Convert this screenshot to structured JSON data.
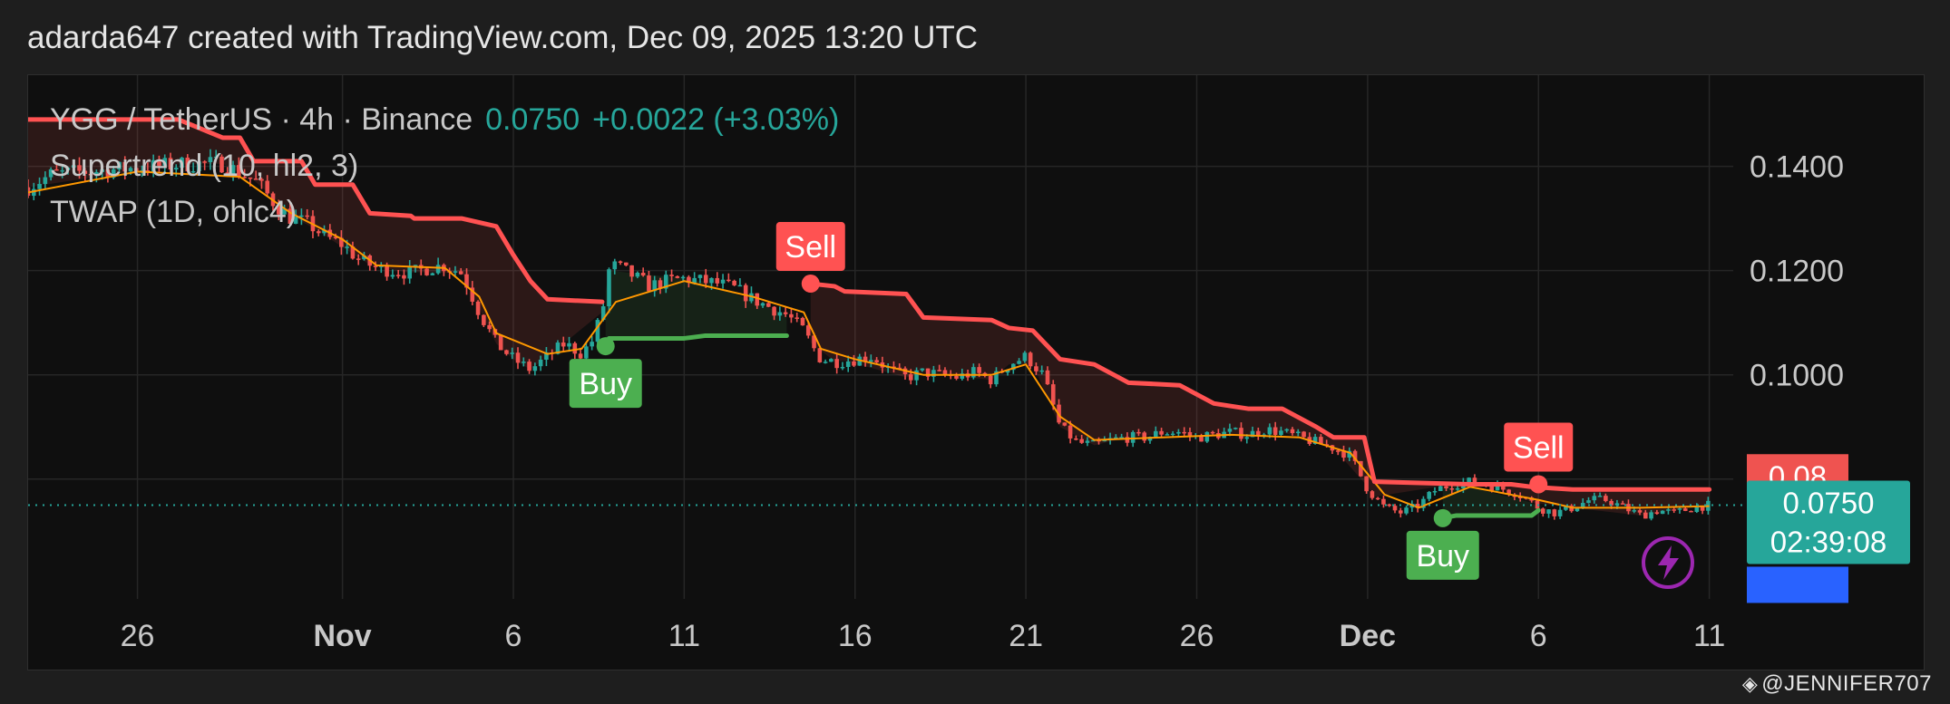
{
  "header": {
    "attribution": "adarda647 created with TradingView.com, Dec 09, 2025 13:20 UTC"
  },
  "legend": {
    "symbol": "YGG / TetherUS · 4h · Binance",
    "last_price": "0.0750",
    "change": "+0.0022 (+3.03%)",
    "indicator_supertrend": "Supertrend (10, hl2, 3)",
    "indicator_twap": "TWAP (1D, ohlc4)"
  },
  "footer": {
    "brand": "@JENNIFER707"
  },
  "colors": {
    "up": "#26a69a",
    "down": "#ef5350",
    "supertrend_down": "#ff5252",
    "supertrend_up": "#4caf50",
    "twap": "#ff9800",
    "price_line": "#26a69a",
    "grid": "#262626"
  },
  "icons": {
    "alert": "lightning-bolt-icon",
    "brand": "binance-diamond-icon"
  },
  "chart_data": {
    "type": "candlestick",
    "symbol": "YGG / TetherUS",
    "interval": "4h",
    "exchange": "Binance",
    "x_tick_labels": [
      "26",
      "Nov",
      "6",
      "11",
      "16",
      "21",
      "26",
      "Dec",
      "6",
      "11"
    ],
    "x_tick_days": [
      -6,
      0,
      5,
      10,
      15,
      20,
      25,
      30,
      35,
      40
    ],
    "x_start_day": -9.2,
    "x_end_day": 40.7,
    "y_tick_labels": [
      "0.1400",
      "0.1200",
      "0.1000"
    ],
    "y_ticks": [
      0.14,
      0.12,
      0.1,
      0.08
    ],
    "ylim": [
      0.057,
      0.1575
    ],
    "last_price": 0.075,
    "price_label": "0.0750",
    "countdown": "02:39:08",
    "supertrend_label": "0.08",
    "series": [
      {
        "name": "Price",
        "kind": "close",
        "points": [
          [
            -9.2,
            0.136
          ],
          [
            -8.5,
            0.1385
          ],
          [
            -7.5,
            0.139
          ],
          [
            -6.5,
            0.1395
          ],
          [
            -5.5,
            0.14
          ],
          [
            -4.5,
            0.1405
          ],
          [
            -3.5,
            0.1405
          ],
          [
            -2.5,
            0.137
          ],
          [
            -2.0,
            0.133
          ],
          [
            -1.5,
            0.13
          ],
          [
            -1.0,
            0.129
          ],
          [
            -0.5,
            0.1265
          ],
          [
            0.0,
            0.125
          ],
          [
            0.5,
            0.122
          ],
          [
            1.0,
            0.1205
          ],
          [
            1.5,
            0.12
          ],
          [
            2.0,
            0.1195
          ],
          [
            2.5,
            0.1205
          ],
          [
            3.0,
            0.121
          ],
          [
            3.5,
            0.1195
          ],
          [
            4.0,
            0.112
          ],
          [
            4.5,
            0.106
          ],
          [
            5.0,
            0.103
          ],
          [
            5.5,
            0.101
          ],
          [
            6.0,
            0.1035
          ],
          [
            6.5,
            0.106
          ],
          [
            7.0,
            0.104
          ],
          [
            7.3,
            0.1065
          ],
          [
            7.6,
            0.112
          ],
          [
            7.8,
            0.12
          ],
          [
            8.0,
            0.121
          ],
          [
            8.5,
            0.119
          ],
          [
            9.0,
            0.117
          ],
          [
            9.5,
            0.118
          ],
          [
            10.0,
            0.1185
          ],
          [
            10.5,
            0.118
          ],
          [
            11.0,
            0.1175
          ],
          [
            11.5,
            0.1165
          ],
          [
            12.0,
            0.1145
          ],
          [
            12.5,
            0.113
          ],
          [
            13.0,
            0.1115
          ],
          [
            13.5,
            0.1085
          ],
          [
            13.8,
            0.105
          ],
          [
            14.0,
            0.103
          ],
          [
            14.5,
            0.1025
          ],
          [
            15.0,
            0.103
          ],
          [
            15.5,
            0.1035
          ],
          [
            16.0,
            0.101
          ],
          [
            16.5,
            0.0995
          ],
          [
            17.0,
            0.1005
          ],
          [
            17.5,
            0.1
          ],
          [
            18.0,
            0.0995
          ],
          [
            18.5,
            0.1005
          ],
          [
            19.0,
            0.099
          ],
          [
            19.5,
            0.102
          ],
          [
            20.0,
            0.1035
          ],
          [
            20.5,
            0.1
          ],
          [
            21.0,
            0.09
          ],
          [
            21.5,
            0.087
          ],
          [
            22.0,
            0.0865
          ],
          [
            22.5,
            0.0875
          ],
          [
            23.0,
            0.088
          ],
          [
            23.5,
            0.088
          ],
          [
            24.0,
            0.089
          ],
          [
            24.5,
            0.089
          ],
          [
            25.0,
            0.088
          ],
          [
            25.5,
            0.0885
          ],
          [
            26.0,
            0.089
          ],
          [
            26.5,
            0.0885
          ],
          [
            27.0,
            0.0895
          ],
          [
            27.5,
            0.089
          ],
          [
            28.0,
            0.088
          ],
          [
            28.5,
            0.087
          ],
          [
            29.0,
            0.086
          ],
          [
            29.5,
            0.0845
          ],
          [
            30.0,
            0.078
          ],
          [
            30.5,
            0.0745
          ],
          [
            31.0,
            0.0735
          ],
          [
            31.5,
            0.075
          ],
          [
            32.0,
            0.078
          ],
          [
            32.5,
            0.079
          ],
          [
            33.0,
            0.0795
          ],
          [
            33.5,
            0.079
          ],
          [
            34.0,
            0.078
          ],
          [
            34.5,
            0.077
          ],
          [
            35.0,
            0.0745
          ],
          [
            35.5,
            0.0735
          ],
          [
            36.0,
            0.0745
          ],
          [
            36.5,
            0.076
          ],
          [
            37.0,
            0.076
          ],
          [
            37.5,
            0.0745
          ],
          [
            38.0,
            0.073
          ],
          [
            38.5,
            0.074
          ],
          [
            39.0,
            0.0735
          ],
          [
            39.5,
            0.0745
          ],
          [
            40.0,
            0.075
          ]
        ]
      },
      {
        "name": "Supertrend (10, hl2, 3)",
        "kind": "supertrend",
        "segments": [
          {
            "direction": "down",
            "points": [
              [
                -9.2,
                0.149
              ],
              [
                -4.8,
                0.149
              ],
              [
                -3.5,
                0.1455
              ],
              [
                -3.0,
                0.1455
              ],
              [
                -2.6,
                0.141
              ],
              [
                -1.2,
                0.141
              ],
              [
                -0.8,
                0.1365
              ],
              [
                0.3,
                0.1365
              ],
              [
                0.8,
                0.131
              ],
              [
                2.0,
                0.1305
              ],
              [
                2.1,
                0.13
              ],
              [
                3.5,
                0.13
              ],
              [
                4.5,
                0.1285
              ],
              [
                5.0,
                0.123
              ],
              [
                5.5,
                0.118
              ],
              [
                6.0,
                0.1145
              ],
              [
                7.6,
                0.114
              ]
            ]
          },
          {
            "direction": "up",
            "points": [
              [
                7.7,
                0.1055
              ],
              [
                7.8,
                0.107
              ],
              [
                10.0,
                0.107
              ],
              [
                10.6,
                0.1075
              ],
              [
                13.0,
                0.1075
              ]
            ]
          },
          {
            "direction": "down",
            "points": [
              [
                13.7,
                0.1175
              ],
              [
                14.4,
                0.117
              ],
              [
                14.7,
                0.116
              ],
              [
                16.5,
                0.1155
              ],
              [
                17.0,
                0.111
              ],
              [
                19.0,
                0.1105
              ],
              [
                19.5,
                0.109
              ],
              [
                20.2,
                0.1085
              ],
              [
                21.0,
                0.103
              ],
              [
                22.0,
                0.102
              ],
              [
                23.0,
                0.0985
              ],
              [
                24.5,
                0.098
              ],
              [
                25.5,
                0.0945
              ],
              [
                26.5,
                0.0935
              ],
              [
                27.5,
                0.0935
              ],
              [
                28.5,
                0.09
              ],
              [
                29.0,
                0.088
              ],
              [
                29.9,
                0.088
              ],
              [
                30.2,
                0.0795
              ],
              [
                33.0,
                0.079
              ],
              [
                34.2,
                0.079
              ],
              [
                34.8,
                0.0785
              ],
              [
                36.0,
                0.078
              ],
              [
                38.0,
                0.078
              ],
              [
                40.0,
                0.078
              ]
            ]
          },
          {
            "direction": "up",
            "points": [
              [
                32.2,
                0.0725
              ],
              [
                32.6,
                0.073
              ],
              [
                34.8,
                0.073
              ],
              [
                35.0,
                0.074
              ]
            ]
          }
        ],
        "signals": [
          {
            "label": "Buy",
            "day": 7.7,
            "price": 0.1055,
            "side": "below"
          },
          {
            "label": "Sell",
            "day": 13.7,
            "price": 0.1175,
            "side": "above"
          },
          {
            "label": "Buy",
            "day": 32.2,
            "price": 0.0725,
            "side": "below"
          },
          {
            "label": "Sell",
            "day": 35.0,
            "price": 0.079,
            "side": "above"
          }
        ]
      },
      {
        "name": "TWAP (1D, ohlc4)",
        "kind": "twap",
        "points": [
          [
            -9.2,
            0.135
          ],
          [
            -6.0,
            0.139
          ],
          [
            -3.0,
            0.138
          ],
          [
            -1.5,
            0.131
          ],
          [
            0.0,
            0.126
          ],
          [
            1.0,
            0.121
          ],
          [
            3.0,
            0.1205
          ],
          [
            4.0,
            0.115
          ],
          [
            4.5,
            0.108
          ],
          [
            6.0,
            0.104
          ],
          [
            7.0,
            0.105
          ],
          [
            8.0,
            0.114
          ],
          [
            10.0,
            0.118
          ],
          [
            12.0,
            0.115
          ],
          [
            13.5,
            0.112
          ],
          [
            14.0,
            0.105
          ],
          [
            15.0,
            0.103
          ],
          [
            17.0,
            0.1
          ],
          [
            19.0,
            0.1
          ],
          [
            20.0,
            0.102
          ],
          [
            21.0,
            0.092
          ],
          [
            22.0,
            0.0875
          ],
          [
            24.0,
            0.088
          ],
          [
            26.0,
            0.0885
          ],
          [
            28.0,
            0.088
          ],
          [
            29.5,
            0.085
          ],
          [
            30.5,
            0.077
          ],
          [
            31.5,
            0.0745
          ],
          [
            33.0,
            0.0785
          ],
          [
            35.0,
            0.076
          ],
          [
            36.0,
            0.0745
          ],
          [
            38.0,
            0.0745
          ],
          [
            40.0,
            0.0748
          ]
        ]
      }
    ]
  }
}
